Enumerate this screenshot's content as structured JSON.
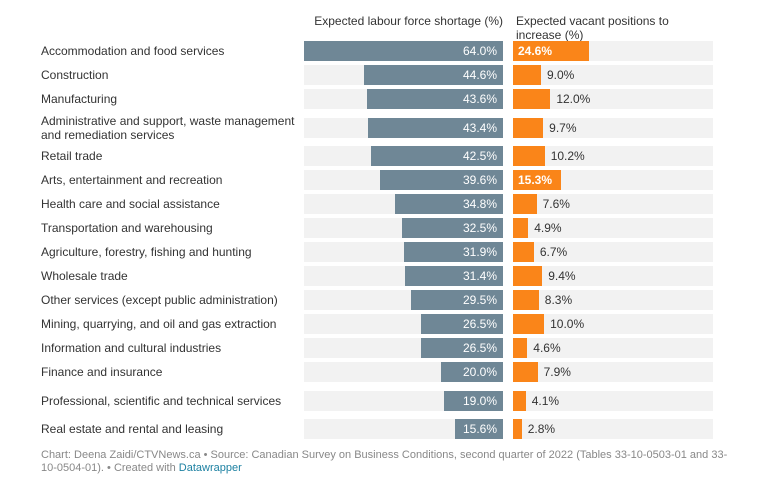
{
  "chart_data": {
    "type": "bar",
    "categories": [
      "Accommodation and food services",
      "Construction",
      "Manufacturing",
      "Administrative and support, waste management and remediation services",
      "Retail trade",
      "Arts, entertainment and recreation",
      "Health care and social assistance",
      "Transportation and warehousing",
      "Agriculture, forestry, fishing and hunting",
      "Wholesale trade",
      "Other services (except public administration)",
      "Mining, quarrying, and oil and gas extraction",
      "Information and cultural industries",
      "Finance and insurance",
      "Professional, scientific and technical services",
      "Real estate and rental and leasing"
    ],
    "series": [
      {
        "name": "Expected labour force shortage (%)",
        "color": "#6f8796",
        "values": [
          64.0,
          44.6,
          43.6,
          43.4,
          42.5,
          39.6,
          34.8,
          32.5,
          31.9,
          31.4,
          29.5,
          26.5,
          26.5,
          20.0,
          19.0,
          15.6
        ]
      },
      {
        "name": "Expected vacant positions to increase (%)",
        "color": "#fa8519",
        "values": [
          24.6,
          9.0,
          12.0,
          9.7,
          10.2,
          15.3,
          7.6,
          4.9,
          6.7,
          9.4,
          8.3,
          10.0,
          4.6,
          7.9,
          4.1,
          2.8
        ]
      }
    ],
    "xlim": [
      0,
      64
    ]
  },
  "footer": {
    "text": "Chart: Deena Zaidi/CTVNews.ca • Source: Canadian Survey on Business Conditions, second quarter of 2022 (Tables 33-10-0503-01 and 33-10-0504-01). • Created with ",
    "link": "Datawrapper"
  }
}
